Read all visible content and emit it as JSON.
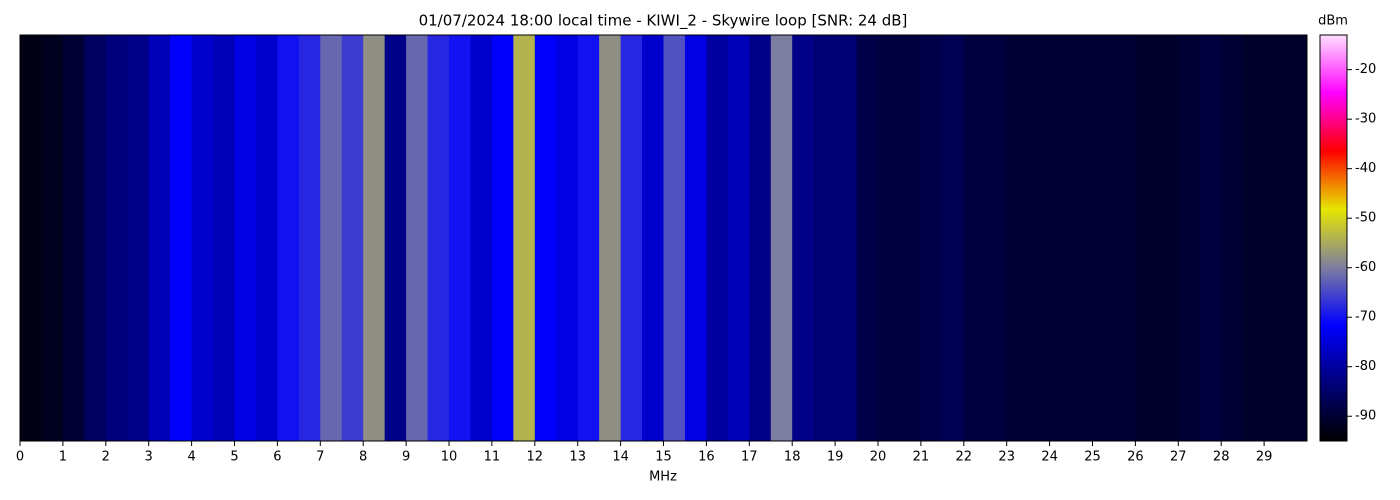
{
  "chart_data": {
    "type": "heatmap",
    "title": "01/07/2024 18:00 local time - KIWI_2 - Skywire loop [SNR: 24 dB]",
    "xlabel": "MHz",
    "colorbar_label": "dBm",
    "x": [
      0.25,
      0.75,
      1.25,
      1.75,
      2.25,
      2.75,
      3.25,
      3.75,
      4.25,
      4.75,
      5.25,
      5.75,
      6.25,
      6.75,
      7.25,
      7.75,
      8.25,
      8.75,
      9.25,
      9.75,
      10.25,
      10.75,
      11.25,
      11.75,
      12.25,
      12.75,
      13.25,
      13.75,
      14.25,
      14.75,
      15.25,
      15.75,
      16.25,
      16.75,
      17.25,
      17.75,
      18.25,
      18.75,
      19.25,
      19.75,
      20.25,
      20.75,
      21.25,
      21.75,
      22.25,
      22.75,
      23.25,
      23.75,
      24.25,
      24.75,
      25.25,
      25.75,
      26.25,
      26.75,
      27.25,
      27.75,
      28.25,
      28.75,
      29.25,
      29.75
    ],
    "values": [
      -93,
      -92,
      -90,
      -86,
      -83,
      -82,
      -78,
      -72,
      -76,
      -78,
      -74,
      -76,
      -70,
      -68,
      -62,
      -66,
      -58,
      -82,
      -62,
      -68,
      -70,
      -76,
      -72,
      -54,
      -72,
      -74,
      -70,
      -58,
      -68,
      -76,
      -64,
      -74,
      -80,
      -78,
      -82,
      -60,
      -82,
      -84,
      -84,
      -88,
      -89,
      -89,
      -88,
      -87,
      -89,
      -89,
      -90,
      -90,
      -90,
      -90,
      -90,
      -90,
      -91,
      -91,
      -90,
      -89,
      -90,
      -91,
      -91,
      -91
    ],
    "xlim": [
      0,
      30
    ],
    "xticks": [
      0,
      1,
      2,
      3,
      4,
      5,
      6,
      7,
      8,
      9,
      10,
      11,
      12,
      13,
      14,
      15,
      16,
      17,
      18,
      19,
      20,
      21,
      22,
      23,
      24,
      25,
      26,
      27,
      28,
      29
    ],
    "clim": [
      -95,
      -13
    ],
    "cticks": [
      -20,
      -30,
      -40,
      -50,
      -60,
      -70,
      -80,
      -90
    ],
    "colormap": [
      "#000000",
      "#00007a",
      "#0000ff",
      "#7f7f9f",
      "#e6e600",
      "#ff0000",
      "#ff00ff",
      "#ffe0ff"
    ]
  }
}
